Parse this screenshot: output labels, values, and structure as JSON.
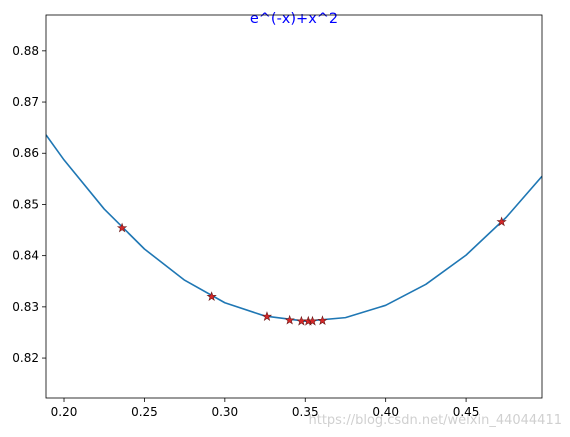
{
  "chart_data": {
    "type": "line",
    "title": "e^(-x)+x^2",
    "title_color": "#0000ff",
    "x": [
      0.1888,
      0.2,
      0.225,
      0.25,
      0.275,
      0.3,
      0.325,
      0.35,
      0.375,
      0.4,
      0.425,
      0.45,
      0.475,
      0.4972
    ],
    "series": [
      {
        "color": "#1f77b4",
        "values": [
          0.8636,
          0.8587,
          0.8491,
          0.8413,
          0.8352,
          0.8308,
          0.8282,
          0.8272,
          0.8279,
          0.8303,
          0.8344,
          0.8401,
          0.8475,
          0.8555
        ]
      }
    ],
    "points": {
      "marker": "star",
      "color": "#d62728",
      "edgecolor": "#6a1b1b",
      "x": [
        0.2361,
        0.2918,
        0.3262,
        0.3403,
        0.3476,
        0.3519,
        0.3545,
        0.3607,
        0.4721
      ],
      "values": [
        0.8454,
        0.832,
        0.8281,
        0.8274,
        0.8272,
        0.8272,
        0.8272,
        0.8273,
        0.8466
      ]
    },
    "xlim": [
      0.1888,
      0.4972
    ],
    "ylim": [
      0.8122,
      0.887
    ],
    "xticks": [
      {
        "value": 0.2,
        "label": "0.20"
      },
      0.25,
      {
        "value": 0.3,
        "label": "0.30"
      },
      0.35,
      {
        "value": 0.4,
        "label": "0.40"
      },
      0.45
    ],
    "yticks": [
      0.82,
      0.83,
      0.84,
      0.85,
      0.86,
      0.87,
      0.88
    ],
    "grid": false,
    "watermark": "https://blog.csdn.net/weixin_44044411"
  }
}
